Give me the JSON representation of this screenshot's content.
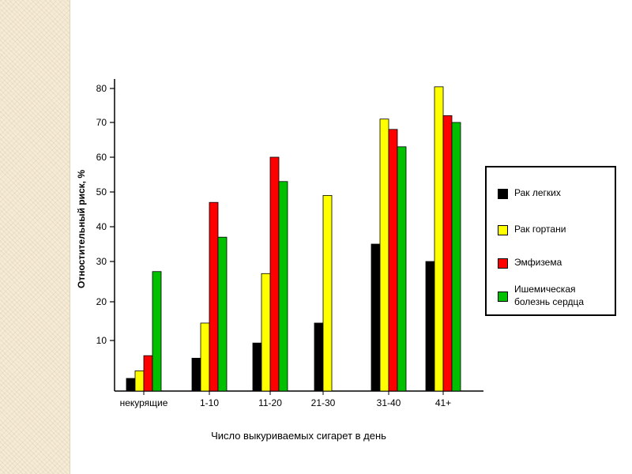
{
  "chart_data": {
    "type": "bar",
    "xlabel": "Число выкуриваемых сигарет в день",
    "ylabel": "Отностительный риск, %",
    "yticks": [
      10,
      20,
      30,
      40,
      50,
      60,
      70,
      80
    ],
    "categories": [
      "некурящие",
      "1-10",
      "11-20",
      "21-30",
      "31-40",
      "41+"
    ],
    "series": [
      {
        "name": "Рак легких",
        "color": "#000000",
        "values": [
          2.5,
          6.5,
          9.5,
          14.5,
          35,
          30
        ]
      },
      {
        "name": "Рак гортани",
        "color": "#ffff00",
        "values": [
          4,
          14.5,
          27,
          49,
          71,
          80.5
        ]
      },
      {
        "name": "Эмфизема",
        "color": "#ff0000",
        "values": [
          7,
          47,
          60,
          null,
          68,
          72
        ]
      },
      {
        "name": "Ишемическая болезнь сердца",
        "color": "#00c000",
        "values": [
          27.5,
          37,
          53,
          null,
          63,
          70
        ]
      }
    ],
    "legend_position": "right",
    "grid": false
  }
}
